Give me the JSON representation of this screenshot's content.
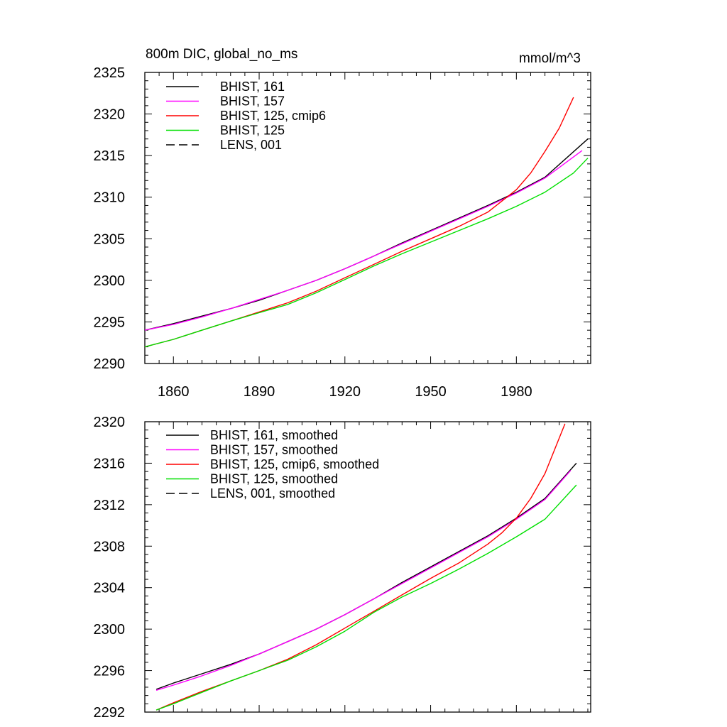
{
  "chart_data": [
    {
      "type": "line",
      "title": "800m DIC, global_no_ms",
      "units": "mmol/m^3",
      "xlim": [
        1850,
        2006
      ],
      "ylim": [
        2290,
        2325
      ],
      "x_major_ticks": [
        1860,
        1890,
        1920,
        1950,
        1980
      ],
      "x_tick_labels": [
        "1860",
        "1890",
        "1920",
        "1950",
        "1980"
      ],
      "y_major_ticks": [
        2290,
        2295,
        2300,
        2305,
        2310,
        2315,
        2320,
        2325
      ],
      "y_tick_labels": [
        "2290",
        "2295",
        "2300",
        "2305",
        "2310",
        "2315",
        "2320",
        "2325"
      ],
      "legend_position": "top-left",
      "series": [
        {
          "name": "BHIST, 161",
          "color": "#000000",
          "dash": "solid",
          "x": [
            1850,
            1860,
            1870,
            1880,
            1890,
            1900,
            1910,
            1920,
            1930,
            1940,
            1950,
            1960,
            1970,
            1980,
            1990,
            2005
          ],
          "y": [
            2294.0,
            2294.8,
            2295.7,
            2296.6,
            2297.6,
            2298.8,
            2300.0,
            2301.4,
            2302.9,
            2304.5,
            2306.0,
            2307.5,
            2309.0,
            2310.6,
            2312.4,
            2317.0
          ]
        },
        {
          "name": "BHIST, 157",
          "color": "#ff00ff",
          "dash": "solid",
          "x": [
            1850,
            1860,
            1870,
            1880,
            1890,
            1900,
            1910,
            1920,
            1930,
            1940,
            1950,
            1960,
            1970,
            1980,
            1990,
            2003
          ],
          "y": [
            2294.0,
            2294.7,
            2295.6,
            2296.6,
            2297.7,
            2298.8,
            2300.0,
            2301.4,
            2302.9,
            2304.4,
            2305.9,
            2307.4,
            2308.9,
            2310.5,
            2312.3,
            2315.6
          ]
        },
        {
          "name": "BHIST, 125, cmip6",
          "color": "#ff0000",
          "dash": "solid",
          "x": [
            1850,
            1860,
            1870,
            1880,
            1890,
            1900,
            1910,
            1920,
            1930,
            1940,
            1950,
            1960,
            1970,
            1980,
            1985,
            1990,
            1995,
            2000
          ],
          "y": [
            2292.0,
            2292.9,
            2294.0,
            2295.1,
            2296.2,
            2297.3,
            2298.7,
            2300.3,
            2301.9,
            2303.5,
            2305.0,
            2306.5,
            2308.2,
            2310.9,
            2312.9,
            2315.5,
            2318.3,
            2322.0
          ]
        },
        {
          "name": "BHIST, 125",
          "color": "#00e000",
          "dash": "solid",
          "x": [
            1850,
            1860,
            1870,
            1880,
            1890,
            1900,
            1910,
            1920,
            1930,
            1940,
            1950,
            1960,
            1970,
            1980,
            1990,
            2000,
            2005
          ],
          "y": [
            2292.0,
            2292.9,
            2294.0,
            2295.1,
            2296.1,
            2297.1,
            2298.5,
            2300.1,
            2301.7,
            2303.2,
            2304.6,
            2306.0,
            2307.4,
            2308.9,
            2310.6,
            2312.9,
            2314.7
          ]
        },
        {
          "name": "LENS, 001",
          "color": "#000000",
          "dash": "dashed",
          "x": [],
          "y": []
        }
      ]
    },
    {
      "type": "line",
      "title": "",
      "units": "",
      "xlim": [
        1850,
        2006
      ],
      "ylim": [
        2292,
        2320
      ],
      "x_major_ticks": [
        1860,
        1890,
        1920,
        1950,
        1980
      ],
      "x_tick_labels": [],
      "y_major_ticks": [
        2292,
        2296,
        2300,
        2304,
        2308,
        2312,
        2316,
        2320
      ],
      "y_tick_labels": [
        "2292",
        "2296",
        "2300",
        "2304",
        "2308",
        "2312",
        "2316",
        "2320"
      ],
      "legend_position": "top-left",
      "series": [
        {
          "name": "BHIST, 161, smoothed",
          "color": "#000000",
          "dash": "solid",
          "x": [
            1854,
            1860,
            1870,
            1880,
            1890,
            1900,
            1910,
            1920,
            1930,
            1940,
            1950,
            1960,
            1970,
            1980,
            1990,
            2001
          ],
          "y": [
            2294.2,
            2294.8,
            2295.7,
            2296.6,
            2297.6,
            2298.8,
            2300.0,
            2301.4,
            2302.9,
            2304.5,
            2306.0,
            2307.5,
            2309.0,
            2310.7,
            2312.6,
            2316.0
          ]
        },
        {
          "name": "BHIST, 157, smoothed",
          "color": "#ff00ff",
          "dash": "solid",
          "x": [
            1854,
            1860,
            1870,
            1880,
            1890,
            1900,
            1910,
            1920,
            1930,
            1940,
            1950,
            1960,
            1970,
            1980,
            1990,
            1999
          ],
          "y": [
            2294.1,
            2294.6,
            2295.5,
            2296.5,
            2297.6,
            2298.8,
            2300.0,
            2301.4,
            2302.9,
            2304.4,
            2305.9,
            2307.4,
            2308.9,
            2310.6,
            2312.5,
            2315.3
          ]
        },
        {
          "name": "BHIST, 125, cmip6, smoothed",
          "color": "#ff0000",
          "dash": "solid",
          "x": [
            1854,
            1860,
            1870,
            1880,
            1890,
            1900,
            1910,
            1920,
            1930,
            1940,
            1950,
            1960,
            1970,
            1975,
            1980,
            1985,
            1990,
            1997
          ],
          "y": [
            2292.2,
            2292.9,
            2294.0,
            2295.0,
            2296.0,
            2297.1,
            2298.5,
            2300.1,
            2301.7,
            2303.3,
            2304.9,
            2306.4,
            2308.2,
            2309.3,
            2310.7,
            2312.6,
            2315.0,
            2319.8
          ]
        },
        {
          "name": "BHIST, 125, smoothed",
          "color": "#00e000",
          "dash": "solid",
          "x": [
            1854,
            1860,
            1870,
            1880,
            1890,
            1900,
            1910,
            1920,
            1930,
            1940,
            1950,
            1960,
            1970,
            1980,
            1990,
            2001
          ],
          "y": [
            2292.2,
            2292.8,
            2293.9,
            2295.0,
            2296.0,
            2297.0,
            2298.3,
            2299.8,
            2301.6,
            2303.1,
            2304.4,
            2305.8,
            2307.3,
            2308.9,
            2310.6,
            2313.9
          ]
        },
        {
          "name": "LENS, 001, smoothed",
          "color": "#000000",
          "dash": "dashed",
          "x": [],
          "y": []
        }
      ]
    }
  ]
}
